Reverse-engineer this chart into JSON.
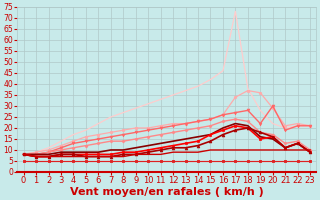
{
  "title": "",
  "xlabel": "Vent moyen/en rafales ( km/h )",
  "ylabel": "",
  "bg_color": "#c8eaea",
  "grid_color": "#b0c8c8",
  "xlim": [
    -0.5,
    23.5
  ],
  "ylim": [
    0,
    75
  ],
  "yticks": [
    0,
    5,
    10,
    15,
    20,
    25,
    30,
    35,
    40,
    45,
    50,
    55,
    60,
    65,
    70,
    75
  ],
  "xticks": [
    0,
    1,
    2,
    3,
    4,
    5,
    6,
    7,
    8,
    9,
    10,
    11,
    12,
    13,
    14,
    15,
    16,
    17,
    18,
    19,
    20,
    21,
    22,
    23
  ],
  "lines": [
    {
      "x": [
        0,
        1,
        2,
        3,
        4,
        5,
        6,
        7,
        8,
        9,
        10,
        11,
        12,
        13,
        14,
        15,
        16,
        17,
        18,
        19,
        20,
        21,
        22,
        23
      ],
      "y": [
        5,
        5,
        5,
        5,
        5,
        5,
        5,
        5,
        5,
        5,
        5,
        5,
        5,
        5,
        5,
        5,
        5,
        5,
        5,
        5,
        5,
        5,
        5,
        5
      ],
      "color": "#dd2222",
      "lw": 0.8,
      "marker": "s",
      "ms": 1.5
    },
    {
      "x": [
        0,
        1,
        2,
        3,
        4,
        5,
        6,
        7,
        8,
        9,
        10,
        11,
        12,
        13,
        14,
        15,
        16,
        17,
        18,
        19,
        20,
        21,
        22,
        23
      ],
      "y": [
        5,
        5,
        5,
        5,
        5,
        5,
        5,
        5,
        5,
        5,
        5,
        5,
        5,
        5,
        5,
        5,
        5,
        5,
        5,
        5,
        5,
        5,
        5,
        5
      ],
      "color": "#ff5555",
      "lw": 0.8,
      "marker": "s",
      "ms": 1.5
    },
    {
      "x": [
        0,
        1,
        2,
        3,
        4,
        5,
        6,
        7,
        8,
        9,
        10,
        11,
        12,
        13,
        14,
        15,
        16,
        17,
        18,
        19,
        20,
        21,
        22,
        23
      ],
      "y": [
        8,
        7,
        7,
        7,
        7,
        7,
        7,
        7,
        7,
        8,
        8,
        8,
        9,
        9,
        9,
        10,
        10,
        10,
        10,
        10,
        10,
        10,
        10,
        10
      ],
      "color": "#cc0000",
      "lw": 1.0,
      "marker": null,
      "ms": 0
    },
    {
      "x": [
        0,
        1,
        2,
        3,
        4,
        5,
        6,
        7,
        8,
        9,
        10,
        11,
        12,
        13,
        14,
        15,
        16,
        17,
        18,
        19,
        20,
        21,
        22,
        23
      ],
      "y": [
        8,
        7,
        7,
        8,
        8,
        7,
        7,
        7,
        8,
        8,
        9,
        10,
        11,
        11,
        12,
        14,
        17,
        19,
        20,
        18,
        16,
        11,
        13,
        9
      ],
      "color": "#aa0000",
      "lw": 1.2,
      "marker": "^",
      "ms": 2.0
    },
    {
      "x": [
        0,
        1,
        2,
        3,
        4,
        5,
        6,
        7,
        8,
        9,
        10,
        11,
        12,
        13,
        14,
        15,
        16,
        17,
        18,
        19,
        20,
        21,
        22,
        23
      ],
      "y": [
        8,
        7,
        7,
        8,
        8,
        8,
        8,
        8,
        9,
        9,
        10,
        11,
        12,
        13,
        14,
        17,
        19,
        21,
        20,
        15,
        16,
        11,
        13,
        9
      ],
      "color": "#ff0000",
      "lw": 1.2,
      "marker": "s",
      "ms": 2.0
    },
    {
      "x": [
        0,
        1,
        2,
        3,
        4,
        5,
        6,
        7,
        8,
        9,
        10,
        11,
        12,
        13,
        14,
        15,
        16,
        17,
        18,
        19,
        20,
        21,
        22,
        23
      ],
      "y": [
        8,
        8,
        8,
        9,
        9,
        9,
        9,
        10,
        10,
        11,
        12,
        13,
        14,
        15,
        16,
        17,
        20,
        22,
        21,
        16,
        15,
        11,
        13,
        9
      ],
      "color": "#880000",
      "lw": 1.2,
      "marker": null,
      "ms": 0
    },
    {
      "x": [
        0,
        1,
        2,
        3,
        4,
        5,
        6,
        7,
        8,
        9,
        10,
        11,
        12,
        13,
        14,
        15,
        16,
        17,
        18,
        19,
        20,
        21,
        22,
        23
      ],
      "y": [
        8,
        8,
        9,
        10,
        11,
        12,
        13,
        14,
        14,
        15,
        16,
        17,
        18,
        19,
        20,
        21,
        23,
        24,
        23,
        18,
        17,
        13,
        14,
        10
      ],
      "color": "#ff8888",
      "lw": 1.0,
      "marker": "D",
      "ms": 1.5
    },
    {
      "x": [
        0,
        1,
        2,
        3,
        4,
        5,
        6,
        7,
        8,
        9,
        10,
        11,
        12,
        13,
        14,
        15,
        16,
        17,
        18,
        19,
        20,
        21,
        22,
        23
      ],
      "y": [
        8,
        8,
        9,
        11,
        13,
        14,
        15,
        16,
        17,
        18,
        19,
        20,
        21,
        22,
        23,
        24,
        26,
        27,
        28,
        22,
        30,
        19,
        21,
        21
      ],
      "color": "#ff6666",
      "lw": 1.0,
      "marker": "v",
      "ms": 2.0
    },
    {
      "x": [
        0,
        1,
        2,
        3,
        4,
        5,
        6,
        7,
        8,
        9,
        10,
        11,
        12,
        13,
        14,
        15,
        16,
        17,
        18,
        19,
        20,
        21,
        22,
        23
      ],
      "y": [
        8,
        9,
        10,
        12,
        14,
        16,
        17,
        18,
        19,
        20,
        20,
        21,
        22,
        22,
        23,
        24,
        26,
        34,
        37,
        36,
        29,
        21,
        22,
        21
      ],
      "color": "#ffaaaa",
      "lw": 0.9,
      "marker": "o",
      "ms": 1.8
    },
    {
      "x": [
        0,
        1,
        2,
        3,
        4,
        5,
        6,
        7,
        8,
        9,
        10,
        11,
        12,
        13,
        14,
        15,
        16,
        17,
        18,
        19,
        20,
        21,
        22,
        23
      ],
      "y": [
        8,
        9,
        11,
        14,
        17,
        19,
        22,
        25,
        27,
        29,
        31,
        33,
        35,
        37,
        39,
        42,
        46,
        73,
        38,
        28,
        22,
        20,
        21,
        21
      ],
      "color": "#ffcccc",
      "lw": 0.9,
      "marker": null,
      "ms": 0
    }
  ],
  "xlabel_color": "#cc0000",
  "xlabel_fontsize": 8,
  "tick_color": "#cc0000",
  "tick_fontsize": 6,
  "ytick_fontsize": 5.5
}
